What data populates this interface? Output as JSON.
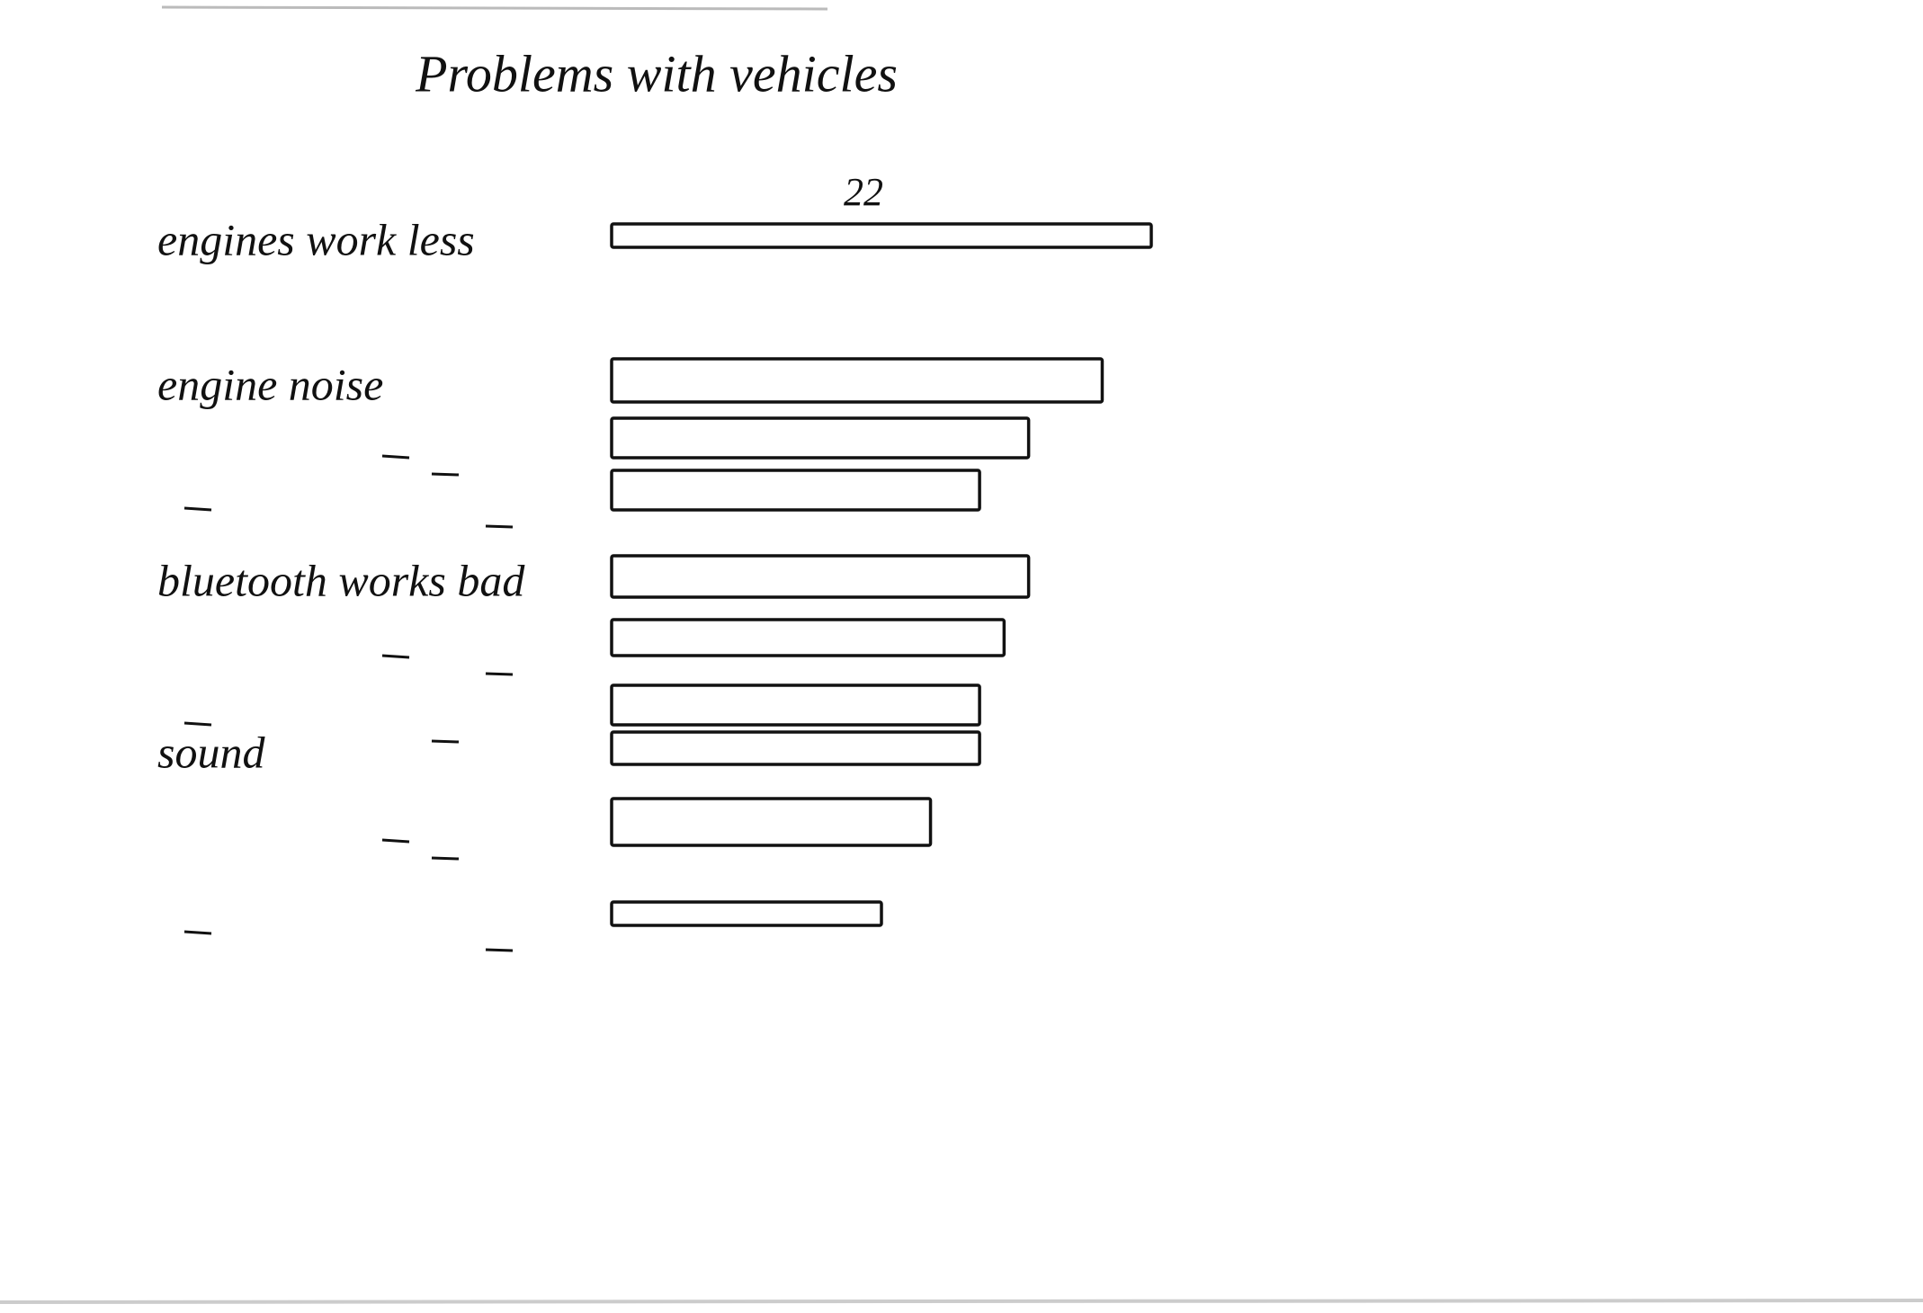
{
  "chart_data": {
    "type": "bar",
    "orientation": "horizontal",
    "title": "Problems with vehicles",
    "categories": [
      "engines work less",
      "engine noise",
      null,
      null,
      "bluetooth works bad",
      null,
      null,
      "sound",
      null,
      null
    ],
    "values": [
      22,
      20,
      17,
      15,
      17,
      16,
      15,
      15,
      13,
      11
    ],
    "color": "#111111"
  }
}
